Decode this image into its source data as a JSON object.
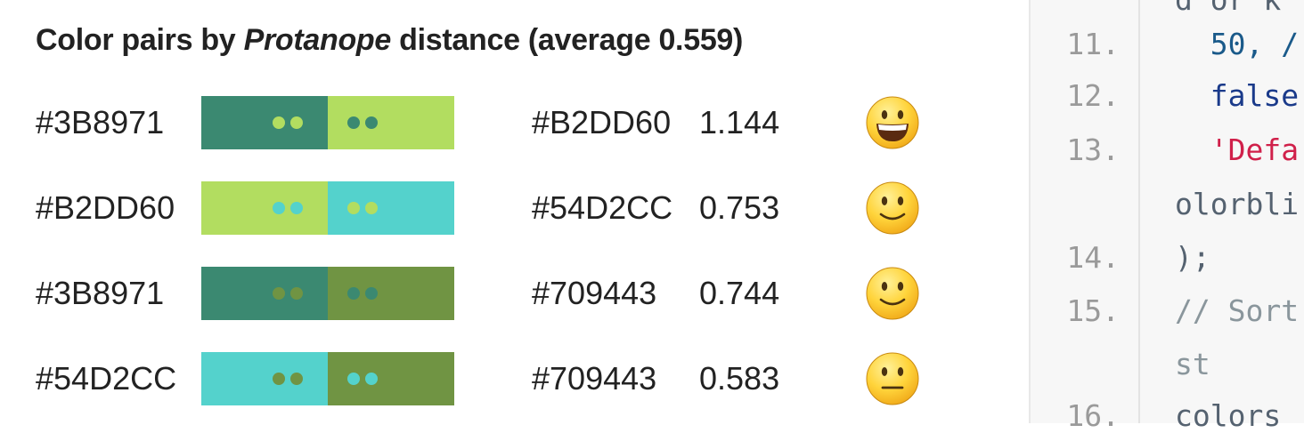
{
  "title": {
    "prefix": "Color pairs by ",
    "emphasis": "Protanope",
    "suffix": " distance (average 0.559)"
  },
  "pairs": [
    {
      "color_a": "#3B8971",
      "color_b": "#B2DD60",
      "distance": "1.144",
      "swatch_a": "#3B8971",
      "swatch_b": "#B2DD60",
      "face": "grinning-face-icon"
    },
    {
      "color_a": "#B2DD60",
      "color_b": "#54D2CC",
      "distance": "0.753",
      "swatch_a": "#B2DD60",
      "swatch_b": "#54D2CC",
      "face": "slightly-smiling-face-icon"
    },
    {
      "color_a": "#3B8971",
      "color_b": "#709443",
      "distance": "0.744",
      "swatch_a": "#3B8971",
      "swatch_b": "#709443",
      "face": "slightly-smiling-face-icon"
    },
    {
      "color_a": "#54D2CC",
      "color_b": "#709443",
      "distance": "0.583",
      "swatch_a": "#54D2CC",
      "swatch_b": "#709443",
      "face": "neutral-face-icon"
    }
  ],
  "code_panel": {
    "lines": [
      {
        "num": "",
        "text": "d or k"
      },
      {
        "num": "11.",
        "text": "  50, /"
      },
      {
        "num": "12.",
        "text": "  false"
      },
      {
        "num": "13.",
        "text": "  'Defa"
      },
      {
        "num": "",
        "text": "olorbli"
      },
      {
        "num": "14.",
        "text": ");"
      },
      {
        "num": "15.",
        "text": "// Sort"
      },
      {
        "num": "",
        "text": "st"
      },
      {
        "num": "16.",
        "text": "colors"
      }
    ]
  }
}
